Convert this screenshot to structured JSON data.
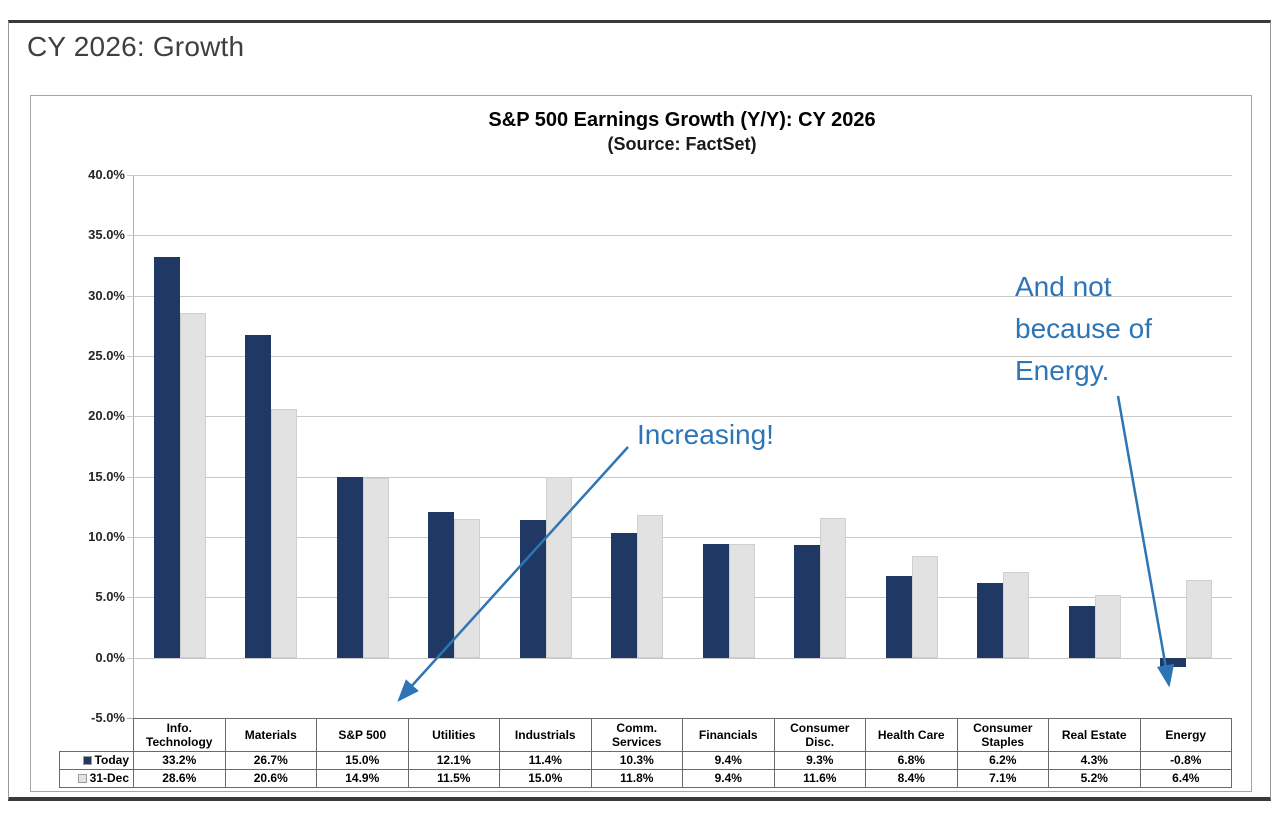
{
  "page": {
    "heading": "CY 2026: Growth"
  },
  "chart_data": {
    "type": "bar",
    "title": "S&P 500 Earnings Growth (Y/Y): CY 2026",
    "subtitle": "(Source: FactSet)",
    "categories": [
      "Info. Technology",
      "Materials",
      "S&P 500",
      "Utilities",
      "Industrials",
      "Comm. Services",
      "Financials",
      "Consumer Disc.",
      "Health Care",
      "Consumer Staples",
      "Real Estate",
      "Energy"
    ],
    "series": [
      {
        "name": "Today",
        "color": "#1F3864",
        "values": [
          33.2,
          26.7,
          15.0,
          12.1,
          11.4,
          10.3,
          9.4,
          9.3,
          6.8,
          6.2,
          4.3,
          -0.8
        ]
      },
      {
        "name": "31-Dec",
        "color": "#E2E2E2",
        "values": [
          28.6,
          20.6,
          14.9,
          11.5,
          15.0,
          11.8,
          9.4,
          11.6,
          8.4,
          7.1,
          5.2,
          6.4
        ]
      }
    ],
    "ylim": [
      -5,
      40
    ],
    "ytick_step": 5,
    "ytick_labels": [
      "40.0%",
      "35.0%",
      "30.0%",
      "25.0%",
      "20.0%",
      "15.0%",
      "10.0%",
      "5.0%",
      "0.0%",
      "-5.0%"
    ],
    "grid": true,
    "legend_position": "table-left",
    "annotations": [
      {
        "text": "Increasing!",
        "color": "#2E75B6"
      },
      {
        "text": "And not because of Energy.",
        "color": "#2E75B6"
      }
    ]
  },
  "table": {
    "rows": [
      {
        "legend": "Today",
        "marker_color": "#1F3864",
        "values": [
          "33.2%",
          "26.7%",
          "15.0%",
          "12.1%",
          "11.4%",
          "10.3%",
          "9.4%",
          "9.3%",
          "6.8%",
          "6.2%",
          "4.3%",
          "-0.8%"
        ]
      },
      {
        "legend": "31-Dec",
        "marker_color": "#E2E2E2",
        "values": [
          "28.6%",
          "20.6%",
          "14.9%",
          "11.5%",
          "15.0%",
          "11.8%",
          "9.4%",
          "11.6%",
          "8.4%",
          "7.1%",
          "5.2%",
          "6.4%"
        ]
      }
    ]
  },
  "colors": {
    "bar_today": "#1F3864",
    "bar_31dec": "#E2E2E2",
    "annotation_blue": "#2E75B6",
    "gridline": "#C8C8C8",
    "heading_text": "#3F3F3F"
  }
}
